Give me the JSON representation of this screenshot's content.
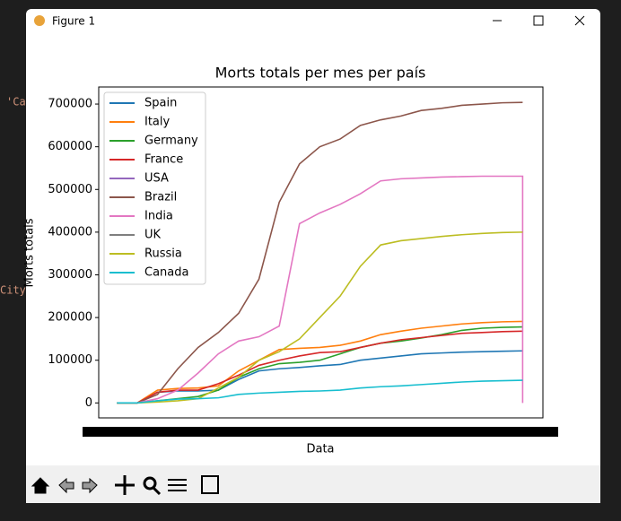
{
  "window": {
    "title": "Figure 1"
  },
  "background_fragments": [
    "'Ca",
    "City"
  ],
  "chart_data": {
    "type": "line",
    "title": "Morts totals per mes per país",
    "xlabel": "Data",
    "ylabel": "Morts totals",
    "x": [
      0,
      2,
      4,
      6,
      8,
      10,
      12,
      14,
      16,
      18,
      20,
      22,
      24,
      26,
      28,
      30,
      32,
      34,
      36,
      38,
      40,
      40
    ],
    "xlim": [
      -1.8,
      42
    ],
    "ylim": [
      -35000,
      740000
    ],
    "yticks": [
      0,
      100000,
      200000,
      300000,
      400000,
      500000,
      600000,
      700000
    ],
    "legend": "upper left",
    "series": [
      {
        "name": "Spain",
        "color": "#1f77b4",
        "values": [
          0,
          0,
          25000,
          28000,
          28000,
          30000,
          55000,
          75000,
          80000,
          83000,
          87000,
          90000,
          100000,
          105000,
          110000,
          115000,
          117000,
          119000,
          120000,
          121000,
          122000,
          122000
        ]
      },
      {
        "name": "Italy",
        "color": "#ff7f0e",
        "values": [
          0,
          0,
          30000,
          34000,
          35000,
          40000,
          75000,
          100000,
          125000,
          128000,
          130000,
          135000,
          145000,
          160000,
          168000,
          175000,
          180000,
          185000,
          188000,
          190000,
          191000,
          191000
        ]
      },
      {
        "name": "Germany",
        "color": "#2ca02c",
        "values": [
          0,
          0,
          5000,
          10000,
          15000,
          30000,
          60000,
          80000,
          92000,
          95000,
          100000,
          115000,
          130000,
          140000,
          145000,
          152000,
          160000,
          170000,
          175000,
          177000,
          178000,
          178000
        ]
      },
      {
        "name": "France",
        "color": "#d62728",
        "values": [
          0,
          0,
          25000,
          30000,
          30000,
          45000,
          65000,
          88000,
          100000,
          110000,
          118000,
          120000,
          130000,
          140000,
          148000,
          153000,
          158000,
          163000,
          165000,
          167000,
          168000,
          168000
        ]
      },
      {
        "name": "USA",
        "color": "#9467bd",
        "values": [
          null,
          null,
          null,
          null,
          null,
          null,
          null,
          null,
          null,
          null,
          null,
          null,
          null,
          null,
          null,
          null,
          null,
          null,
          null,
          null,
          null,
          null
        ]
      },
      {
        "name": "Brazil",
        "color": "#8c564b",
        "values": [
          0,
          0,
          20000,
          80000,
          130000,
          165000,
          210000,
          290000,
          470000,
          560000,
          600000,
          618000,
          650000,
          663000,
          672000,
          685000,
          690000,
          697000,
          700000,
          703000,
          704000,
          704000
        ]
      },
      {
        "name": "India",
        "color": "#e377c2",
        "values": [
          0,
          0,
          10000,
          30000,
          70000,
          115000,
          145000,
          155000,
          180000,
          420000,
          445000,
          465000,
          490000,
          520000,
          525000,
          527000,
          529000,
          530000,
          531000,
          531000,
          531000,
          0
        ]
      },
      {
        "name": "UK",
        "color": "#7f7f7f",
        "values": [
          null,
          null,
          null,
          null,
          null,
          null,
          null,
          null,
          null,
          null,
          null,
          null,
          null,
          null,
          null,
          null,
          null,
          null,
          null,
          null,
          null,
          null
        ]
      },
      {
        "name": "Russia",
        "color": "#bcbd22",
        "values": [
          0,
          0,
          2000,
          5000,
          10000,
          35000,
          60000,
          100000,
          120000,
          150000,
          200000,
          250000,
          320000,
          370000,
          380000,
          385000,
          390000,
          394000,
          397000,
          399000,
          400000,
          400000
        ]
      },
      {
        "name": "Canada",
        "color": "#17becf",
        "values": [
          0,
          0,
          5000,
          9000,
          10000,
          12000,
          20000,
          23000,
          25000,
          27000,
          28000,
          30000,
          35000,
          38000,
          40000,
          43000,
          46000,
          49000,
          51000,
          52000,
          53000,
          53000
        ]
      }
    ]
  }
}
